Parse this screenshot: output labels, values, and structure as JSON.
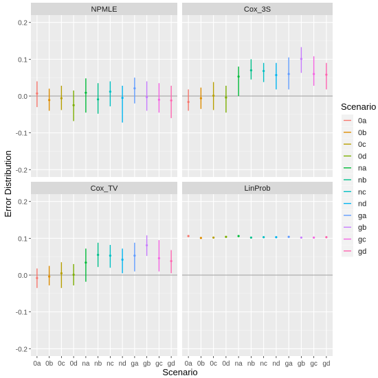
{
  "chart_data": {
    "type": "scatter",
    "subtype": "point-range faceted",
    "xlabel": "Scenario",
    "ylabel": "Error Distribution",
    "ylim": [
      -0.22,
      0.22
    ],
    "y_ticks": [
      -0.2,
      -0.1,
      0.0,
      0.1,
      0.2
    ],
    "y_tick_labels": [
      "-0.2",
      "-0.1",
      "0.0",
      "0.1",
      "0.2"
    ],
    "categories": [
      "0a",
      "0b",
      "0c",
      "0d",
      "na",
      "nb",
      "nc",
      "nd",
      "ga",
      "gb",
      "gc",
      "gd"
    ],
    "reference_line": 0,
    "grid": true,
    "legend": {
      "title": "Scenario",
      "placement": "right",
      "entries": [
        "0a",
        "0b",
        "0c",
        "0d",
        "na",
        "nb",
        "nc",
        "nd",
        "ga",
        "gb",
        "gc",
        "gd"
      ]
    },
    "colors": [
      "#F8766D",
      "#DE8C00",
      "#B79F00",
      "#7CAE00",
      "#00BA38",
      "#00C08B",
      "#00BFC4",
      "#00B4F0",
      "#619CFF",
      "#C77CFF",
      "#F564E3",
      "#FF64B0"
    ],
    "panels": [
      {
        "title": "NPMLE",
        "center": [
          0.007,
          -0.011,
          -0.006,
          -0.025,
          0.009,
          -0.009,
          0.012,
          -0.005,
          0.021,
          -0.003,
          -0.01,
          -0.012
        ],
        "low": [
          -0.03,
          -0.04,
          -0.038,
          -0.068,
          -0.045,
          -0.048,
          -0.028,
          -0.072,
          -0.02,
          -0.04,
          -0.045,
          -0.06
        ],
        "high": [
          0.04,
          0.02,
          0.028,
          0.015,
          0.048,
          0.035,
          0.04,
          0.028,
          0.05,
          0.04,
          0.035,
          0.028
        ]
      },
      {
        "title": "Cox_3S",
        "center": [
          -0.016,
          -0.006,
          0.001,
          -0.004,
          0.053,
          0.07,
          0.068,
          0.057,
          0.06,
          0.101,
          0.06,
          0.058
        ],
        "low": [
          -0.04,
          -0.035,
          -0.038,
          -0.045,
          0.0,
          0.045,
          0.038,
          0.018,
          0.018,
          0.063,
          0.028,
          0.018
        ],
        "high": [
          0.018,
          0.023,
          0.038,
          0.028,
          0.08,
          0.1,
          0.09,
          0.09,
          0.105,
          0.133,
          0.108,
          0.09
        ]
      },
      {
        "title": "Cox_TV",
        "center": [
          -0.008,
          -0.004,
          0.005,
          0.001,
          0.034,
          0.055,
          0.053,
          0.042,
          0.053,
          0.081,
          0.046,
          0.038
        ],
        "low": [
          -0.035,
          -0.028,
          -0.035,
          -0.028,
          -0.018,
          0.022,
          0.02,
          0.005,
          0.01,
          0.052,
          0.01,
          0.005
        ],
        "high": [
          0.018,
          0.025,
          0.035,
          0.03,
          0.072,
          0.088,
          0.082,
          0.072,
          0.088,
          0.108,
          0.095,
          0.068
        ]
      },
      {
        "title": "LinProb",
        "center": [
          0.106,
          0.101,
          0.102,
          0.104,
          0.106,
          0.102,
          0.103,
          0.103,
          0.104,
          0.102,
          0.102,
          0.103
        ],
        "low": [
          0.105,
          0.099,
          0.1,
          0.103,
          0.105,
          0.1,
          0.102,
          0.102,
          0.103,
          0.1,
          0.101,
          0.102
        ],
        "high": [
          0.107,
          0.102,
          0.103,
          0.105,
          0.107,
          0.103,
          0.104,
          0.104,
          0.106,
          0.103,
          0.103,
          0.104
        ]
      }
    ]
  }
}
